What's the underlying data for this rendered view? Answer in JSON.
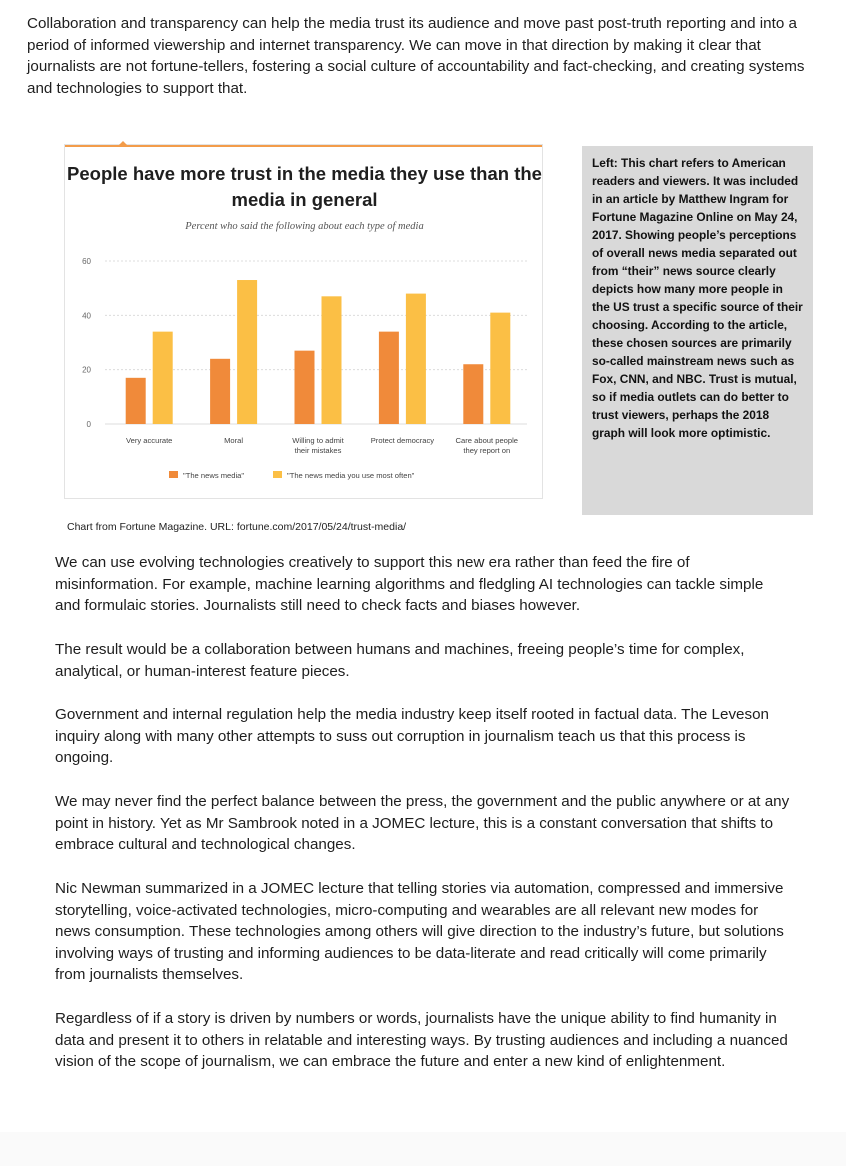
{
  "document": {
    "intro": "Collaboration and transparency can help the media trust its audience and move past post-truth reporting and into a period of informed viewership and internet transparency. We can move in that direction by making it clear that journalists are not fortune-tellers, fostering a social culture of accountability and fact-checking, and creating systems and technologies to support that.",
    "sidebar_note": "Left: This chart refers to American readers and viewers. It was included in an article by Matthew Ingram for Fortune Magazine Online on May 24, 2017. Showing people’s perceptions of overall news media separated out from “their” news source clearly depicts how many more people in the US trust a specific source of their choosing. According to the article, these chosen sources are primarily so-called mainstream news such as Fox, CNN, and NBC. Trust is mutual, so if media outlets can do better to trust viewers, perhaps the 2018 graph will look more optimistic.",
    "caption": "Chart from Fortune Magazine. URL: fortune.com/2017/05/24/trust-media/",
    "paragraphs": [
      "We can use evolving technologies creatively to support this new era rather than feed the fire of misinformation. For example, machine learning algorithms and fledgling AI technologies can tackle simple and formulaic stories. Journalists still need to check facts and biases however.",
      "The result would be a collaboration between humans and machines, freeing people’s time for complex, analytical, or human-interest feature pieces.",
      "Government and internal regulation help the media industry keep itself rooted in factual data. The Leveson inquiry along with many other attempts to suss out corruption in journalism teach us that this process is ongoing.",
      "We may never find the perfect balance between the press, the government and the public anywhere or at any point in history. Yet as Mr Sambrook noted in a JOMEC lecture, this is a constant conversation that shifts to embrace cultural and technological changes.",
      "Nic Newman summarized in a JOMEC lecture that telling stories via automation, compressed and immersive storytelling, voice-activated technologies, micro-computing and wearables are all relevant new modes for news consumption. These technologies among others will give direction to the industry’s future, but solutions involving ways of trusting and informing audiences to be data-literate and read critically will come primarily from journalists themselves.",
      "Regardless of if a story is driven by numbers or words, journalists have the unique ability to find humanity in data and present it to others in relatable and interesting ways. By trusting audiences and including a nuanced vision of the scope of journalism, we can embrace the future and enter a new kind of enlightenment."
    ]
  },
  "chart_data": {
    "type": "bar",
    "title": "People have more trust in the media they use than the media in general",
    "subtitle": "Percent who said the following about each type of media",
    "categories": [
      [
        "Very accurate"
      ],
      [
        "Moral"
      ],
      [
        "Willing to admit",
        "their mistakes"
      ],
      [
        "Protect democracy"
      ],
      [
        "Care about people",
        "they report on"
      ]
    ],
    "series": [
      {
        "name": "\"The news media\"",
        "color": "#f08a3a",
        "values": [
          17,
          24,
          27,
          34,
          22
        ]
      },
      {
        "name": "\"The news media you use most often\"",
        "color": "#fbbf45",
        "values": [
          34,
          53,
          47,
          48,
          41
        ]
      }
    ],
    "ylim": [
      0,
      60
    ],
    "yticks": [
      0,
      20,
      40,
      60
    ],
    "grid": true,
    "legend": "bottom"
  }
}
